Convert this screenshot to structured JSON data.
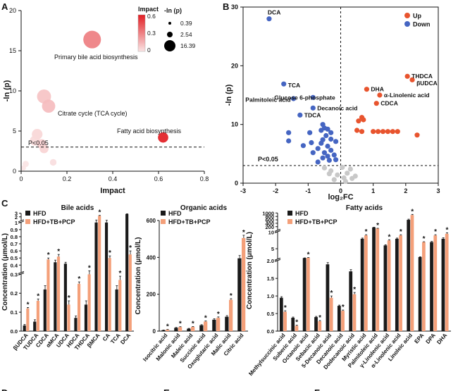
{
  "panel_letters": {
    "a": "A",
    "b": "B",
    "c": "C",
    "d": "D",
    "e": "E",
    "f": "F"
  },
  "chart_data": [
    {
      "panel": "A",
      "type": "scatter",
      "xlabel": "Impact",
      "ylabel": "-ln (p)",
      "xlim": [
        0,
        0.8
      ],
      "ylim": [
        0,
        20
      ],
      "xticks": [
        "0",
        "0.2",
        "0.4",
        "0.6",
        "0.8"
      ],
      "yticks": [
        "0",
        "5",
        "10",
        "15",
        "20"
      ],
      "threshold": {
        "y": 3.0,
        "label": "P<0.05"
      },
      "impact_legend": {
        "title": "Impact",
        "ticks": [
          "0.6",
          "0.3",
          "0"
        ],
        "range": [
          0,
          0.6
        ]
      },
      "size_legend": {
        "title": "-ln (p)",
        "entries": [
          "0.39",
          "2.54",
          "16.39"
        ]
      },
      "points": [
        {
          "x": 0.31,
          "y": 16.39,
          "impact": 0.31,
          "label": "Primary bile acid biosynthesis"
        },
        {
          "x": 0.1,
          "y": 9.3,
          "impact": 0.1,
          "label": ""
        },
        {
          "x": 0.12,
          "y": 8.1,
          "impact": 0.12,
          "label": "Citrate cycle (TCA cycle)"
        },
        {
          "x": 0.62,
          "y": 4.2,
          "impact": 0.62,
          "label": "Fatty acid biosynthesis"
        },
        {
          "x": 0.07,
          "y": 4.6,
          "impact": 0.04,
          "label": ""
        },
        {
          "x": 0.09,
          "y": 3.4,
          "impact": 0.06,
          "label": ""
        },
        {
          "x": 0.06,
          "y": 3.8,
          "impact": 0.03,
          "label": ""
        },
        {
          "x": 0.1,
          "y": 2.8,
          "impact": 0.05,
          "label": ""
        },
        {
          "x": 0.14,
          "y": 1.1,
          "impact": 0.02,
          "label": ""
        },
        {
          "x": 0.02,
          "y": 0.9,
          "impact": 0.0,
          "label": ""
        },
        {
          "x": 0.01,
          "y": 0.4,
          "impact": 0.0,
          "label": ""
        }
      ]
    },
    {
      "panel": "B",
      "type": "scatter",
      "xlabel": "log₂FC",
      "ylabel": "-ln (p)",
      "xlim": [
        -3,
        3
      ],
      "ylim": [
        0,
        30
      ],
      "xticks": [
        "-3",
        "-2",
        "-1",
        "0",
        "1",
        "2",
        "3"
      ],
      "yticks": [
        "0",
        "10",
        "20",
        "30"
      ],
      "threshold": {
        "y": 3.0,
        "label": "P<0.05"
      },
      "legend": [
        {
          "name": "Up",
          "color": "#e8542e"
        },
        {
          "name": "Down",
          "color": "#4565c2"
        }
      ],
      "labels": [
        {
          "x": -2.2,
          "y": 28,
          "text": "DCA"
        },
        {
          "x": -1.75,
          "y": 16.7,
          "text": "TCA"
        },
        {
          "x": -1.45,
          "y": 14.2,
          "text": "Palmitoleic acid"
        },
        {
          "x": -0.85,
          "y": 14.6,
          "text": "Glucose 6-phosphate"
        },
        {
          "x": -0.85,
          "y": 12.8,
          "text": "Decanoic acid"
        },
        {
          "x": -1.25,
          "y": 11.6,
          "text": "TDCA"
        },
        {
          "x": 0.8,
          "y": 16.0,
          "text": "DHA"
        },
        {
          "x": 2.05,
          "y": 18.0,
          "text": "THDCA"
        },
        {
          "x": 2.2,
          "y": 17.4,
          "text": "βUDCA"
        },
        {
          "x": 1.2,
          "y": 15.0,
          "text": "α-Linolenic acid"
        },
        {
          "x": 1.1,
          "y": 13.6,
          "text": "CDCA"
        }
      ],
      "points_up": [
        [
          2.05,
          18.2
        ],
        [
          2.2,
          17.6
        ],
        [
          0.8,
          16.0
        ],
        [
          1.2,
          15.0
        ],
        [
          1.1,
          13.6
        ],
        [
          0.65,
          11.2
        ],
        [
          0.55,
          10.6
        ],
        [
          0.7,
          10.8
        ],
        [
          0.5,
          9.0
        ],
        [
          0.65,
          8.8
        ],
        [
          1.0,
          8.8
        ],
        [
          1.15,
          8.8
        ],
        [
          1.3,
          8.8
        ],
        [
          1.45,
          8.8
        ],
        [
          1.6,
          8.8
        ],
        [
          1.75,
          8.8
        ],
        [
          2.35,
          8.2
        ]
      ],
      "points_down": [
        [
          -2.2,
          28.0
        ],
        [
          -1.75,
          16.9
        ],
        [
          -1.45,
          14.4
        ],
        [
          -0.85,
          14.6
        ],
        [
          -0.85,
          12.8
        ],
        [
          -1.25,
          11.6
        ],
        [
          -0.55,
          10.0
        ],
        [
          -0.5,
          9.4
        ],
        [
          -0.6,
          9.0
        ],
        [
          -0.4,
          9.2
        ],
        [
          -0.3,
          8.6
        ],
        [
          -0.45,
          8.1
        ],
        [
          -0.55,
          7.4
        ],
        [
          -0.3,
          7.5
        ],
        [
          -0.6,
          6.8
        ],
        [
          -0.9,
          6.9
        ],
        [
          -0.4,
          6.3
        ],
        [
          -0.7,
          5.9
        ],
        [
          -0.3,
          5.6
        ],
        [
          -0.5,
          5.2
        ],
        [
          -0.85,
          5.2
        ],
        [
          -0.4,
          4.6
        ],
        [
          -0.2,
          4.8
        ],
        [
          -0.55,
          4.3
        ],
        [
          -0.7,
          3.6
        ],
        [
          -0.35,
          3.9
        ],
        [
          -0.15,
          4.0
        ],
        [
          -1.6,
          8.6
        ],
        [
          -1.6,
          7.2
        ],
        [
          -1.15,
          6.4
        ],
        [
          -0.15,
          7.1
        ],
        [
          -0.95,
          8.6
        ]
      ],
      "points_ns": [
        [
          -0.5,
          2.6
        ],
        [
          -0.3,
          2.1
        ],
        [
          -0.1,
          1.4
        ],
        [
          0.1,
          0.9
        ],
        [
          0.2,
          1.7
        ],
        [
          0.3,
          2.4
        ],
        [
          0.45,
          1.2
        ],
        [
          -0.2,
          0.6
        ],
        [
          0.05,
          2.7
        ],
        [
          -0.35,
          1.6
        ],
        [
          0.15,
          0.3
        ],
        [
          0.35,
          0.8
        ]
      ]
    },
    {
      "panel": "C",
      "title": "Bile acids",
      "type": "bar",
      "ylabel": "Concentration (μmol/L)",
      "categories": [
        "βUDCA",
        "TUDCA",
        "CDCA",
        "αMCA",
        "UDCA",
        "HDCA",
        "THDCA",
        "βMCA",
        "CA",
        "TCA",
        "DCA"
      ],
      "segments": [
        {
          "range": [
            0,
            0.3
          ],
          "ticks": [
            "0.0",
            "0.1",
            "0.2",
            "0.3"
          ]
        },
        {
          "range": [
            0.3,
            1.0
          ],
          "ticks": [
            "0.4",
            "0.5",
            "0.6",
            "0.7",
            "0.8",
            "0.9",
            "1"
          ]
        },
        {
          "range": [
            1.0,
            3.0
          ],
          "ticks": [
            "2",
            "3"
          ]
        }
      ],
      "series": [
        {
          "name": "HFD",
          "color": "#1a1a1a",
          "values": [
            0.03,
            0.05,
            0.22,
            0.44,
            0.42,
            0.07,
            0.14,
            1.0,
            1.0,
            0.22,
            2.8
          ]
        },
        {
          "name": "HFD+TB+PCP",
          "color": "#f4a07a",
          "values": [
            0.12,
            0.16,
            0.48,
            0.52,
            0.14,
            0.25,
            0.3,
            2.3,
            0.5,
            0.27,
            0.55
          ]
        }
      ],
      "significant": [
        true,
        true,
        true,
        true,
        true,
        true,
        true,
        true,
        true,
        true,
        true
      ],
      "errors": [
        0.005,
        0.01,
        0.02,
        0.03,
        0.02,
        0.01,
        0.02,
        0.1,
        0.03,
        0.02,
        0.05
      ]
    },
    {
      "panel": "C2",
      "title": "Organic acids",
      "type": "bar",
      "ylabel": "Concentration (μmol/L)",
      "categories": [
        "Isocitric acid",
        "Malonic acid",
        "Maleic acid",
        "Succinic acid",
        "Oxoglutaric acid",
        "Malic acid",
        "Citric acid"
      ],
      "ylim": [
        0,
        600
      ],
      "yticks": [
        "0",
        "200",
        "400",
        "600"
      ],
      "series": [
        {
          "name": "HFD",
          "color": "#1a1a1a",
          "values": [
            5,
            18,
            13,
            32,
            62,
            78,
            395
          ]
        },
        {
          "name": "HFD+TB+PCP",
          "color": "#f4a07a",
          "values": [
            8,
            22,
            23,
            52,
            72,
            170,
            505
          ]
        }
      ],
      "significant": [
        true,
        true,
        true,
        true,
        true,
        true,
        true
      ],
      "errors": [
        1,
        2,
        2,
        3,
        5,
        6,
        15
      ]
    },
    {
      "panel": "C3",
      "title": "Fatty acids",
      "type": "bar",
      "ylabel": "Concentration (μmol/L)",
      "categories": [
        "Methylsuccinic acid",
        "Suberic acid",
        "Octanoic acid",
        "Sebacic acid",
        "5-Decanoic acid",
        "Decanoic acid",
        "Dodecanoic acid",
        "Myristic acid",
        "Palmitoleic acid",
        "γ-Linolenic acid",
        "α-Linolenic acid",
        "Linoleic acid",
        "EPA",
        "DPA",
        "DHA"
      ],
      "segments": [
        {
          "range": [
            0,
            2.0
          ],
          "ticks": [
            "0.0",
            "0.5",
            "1.0",
            "1.5",
            "2.0"
          ]
        },
        {
          "range": [
            2.0,
            10
          ],
          "ticks": [
            "5",
            "10"
          ]
        },
        {
          "range": [
            10,
            1000
          ],
          "ticks": [
            "200",
            "400",
            "600",
            "800",
            "1000"
          ]
        }
      ],
      "series": [
        {
          "name": "HFD",
          "color": "#1a1a1a",
          "values": [
            0.95,
            0.38,
            2.2,
            0.4,
            1.9,
            0.72,
            1.7,
            8.0,
            160,
            6.0,
            8.0,
            600,
            2.5,
            7.0,
            8.0
          ]
        },
        {
          "name": "HFD+TB+PCP",
          "color": "#f4a07a",
          "values": [
            0.55,
            0.15,
            2.3,
            0.28,
            0.95,
            0.58,
            1.05,
            9.0,
            100,
            7.5,
            9.0,
            880,
            7.0,
            9.0,
            9.5
          ]
        }
      ],
      "significant": [
        true,
        true,
        true,
        true,
        true,
        true,
        true,
        true,
        true,
        true,
        true,
        true,
        true,
        true,
        true
      ],
      "errors": [
        0.03,
        0.02,
        0.05,
        0.02,
        0.05,
        0.02,
        0.05,
        0.2,
        8,
        0.2,
        0.2,
        40,
        0.1,
        0.2,
        0.3
      ]
    }
  ]
}
